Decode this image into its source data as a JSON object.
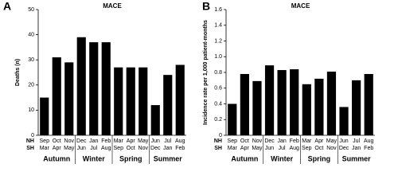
{
  "chart_data": [
    {
      "type": "bar",
      "panel": "A",
      "title": "MACE",
      "y_label": "Deaths (n)",
      "row_labels": [
        "NH",
        "SH"
      ],
      "categories": [
        "Sep",
        "Oct",
        "Nov",
        "Dec",
        "Jan",
        "Feb",
        "Mar",
        "Apr",
        "May",
        "Jun",
        "Jul",
        "Aug"
      ],
      "categories_sh": [
        "Mar",
        "Apr",
        "May",
        "Jun",
        "Jul",
        "Aug",
        "Sep",
        "Oct",
        "Nov",
        "Dec",
        "Jan",
        "Feb"
      ],
      "groups": [
        "Autumn",
        "Winter",
        "Spring",
        "Summer"
      ],
      "values": [
        15,
        31,
        29,
        39,
        37,
        37,
        27,
        27,
        27,
        12,
        24,
        28
      ],
      "color": "#000000",
      "ylim": [
        0,
        50
      ],
      "yticks": [
        0,
        10,
        20,
        30,
        40,
        50
      ]
    },
    {
      "type": "bar",
      "panel": "B",
      "title": "MACE",
      "y_label": "Incidence rate per 1,000 patient-months",
      "row_labels": [
        "NH",
        "SH"
      ],
      "categories": [
        "Sep",
        "Oct",
        "Nov",
        "Dec",
        "Jan",
        "Feb",
        "Mar",
        "Apr",
        "May",
        "Jun",
        "Jul",
        "Aug"
      ],
      "categories_sh": [
        "Mar",
        "Apr",
        "May",
        "Jun",
        "Jul",
        "Aug",
        "Sep",
        "Oct",
        "Nov",
        "Dec",
        "Jan",
        "Feb"
      ],
      "groups": [
        "Autumn",
        "Winter",
        "Spring",
        "Summer"
      ],
      "values": [
        0.4,
        0.78,
        0.69,
        0.89,
        0.83,
        0.84,
        0.65,
        0.72,
        0.81,
        0.36,
        0.7,
        0.78
      ],
      "color": "#000000",
      "ylim": [
        0,
        1.6
      ],
      "yticks": [
        0,
        0.2,
        0.4,
        0.6,
        0.8,
        {
          "value": 1,
          "label": "1.0"
        },
        1.2,
        1.4,
        1.6
      ]
    }
  ]
}
